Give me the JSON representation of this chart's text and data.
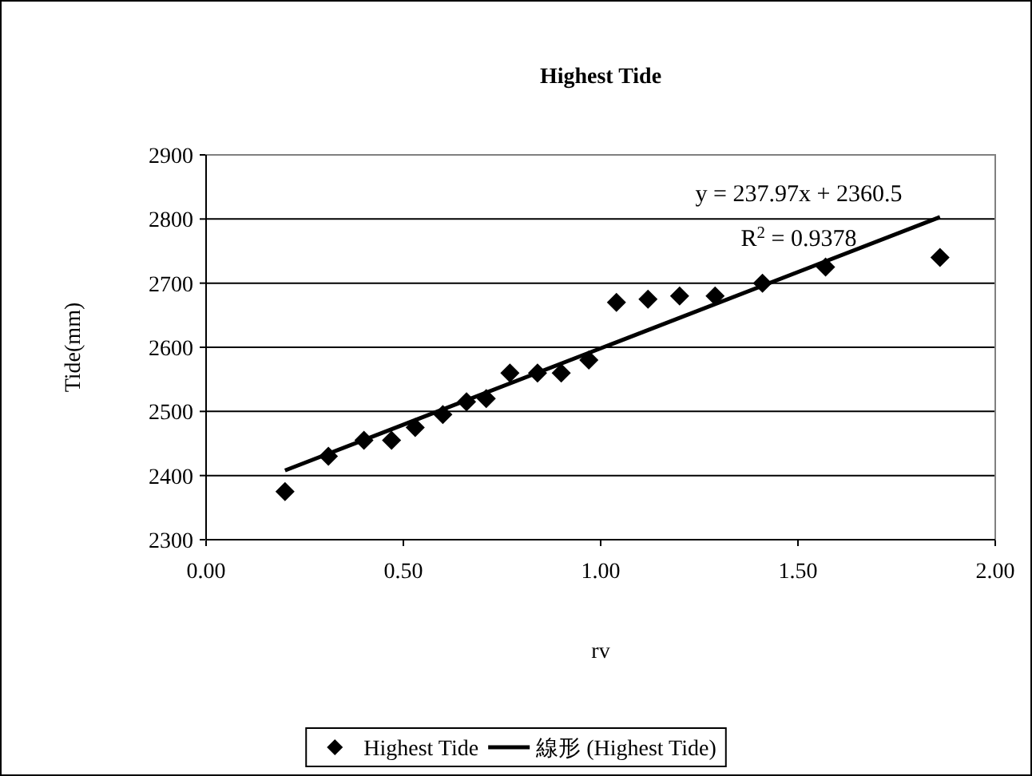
{
  "chart_data": {
    "type": "scatter",
    "title": "Highest Tide",
    "xlabel": "rv",
    "ylabel": "Tide(mm)",
    "xlim": [
      0,
      2
    ],
    "ylim": [
      2300,
      2900
    ],
    "xticks": [
      {
        "value": 0,
        "label": "0.00"
      },
      {
        "value": 0.5,
        "label": "0.50"
      },
      {
        "value": 1,
        "label": "1.00"
      },
      {
        "value": 1.5,
        "label": "1.50"
      },
      {
        "value": 2,
        "label": "2.00"
      }
    ],
    "yticks": [
      2300,
      2400,
      2500,
      2600,
      2700,
      2800,
      2900
    ],
    "grid": "y",
    "legend": "bottom",
    "marker": "diamond",
    "series": [
      {
        "name": "Highest Tide",
        "color": "#000000",
        "x": [
          0.2,
          0.31,
          0.4,
          0.47,
          0.53,
          0.6,
          0.66,
          0.71,
          0.77,
          0.84,
          0.9,
          0.97,
          1.04,
          1.12,
          1.2,
          1.29,
          1.41,
          1.57,
          1.86
        ],
        "values": [
          2375,
          2430,
          2455,
          2455,
          2475,
          2495,
          2515,
          2520,
          2560,
          2560,
          2560,
          2580,
          2670,
          2675,
          2680,
          2680,
          2700,
          2725,
          2740
        ]
      },
      {
        "name": "線形 (Highest Tide)",
        "type": "line",
        "color": "#000000",
        "marker": "none",
        "line_style": "solid",
        "x": [
          0.2,
          1.86
        ],
        "values": [
          2408,
          2803
        ]
      }
    ],
    "annotations": [
      "y = 237.97x + 2360.5",
      "R$^{2}$ = 0.9378"
    ]
  }
}
